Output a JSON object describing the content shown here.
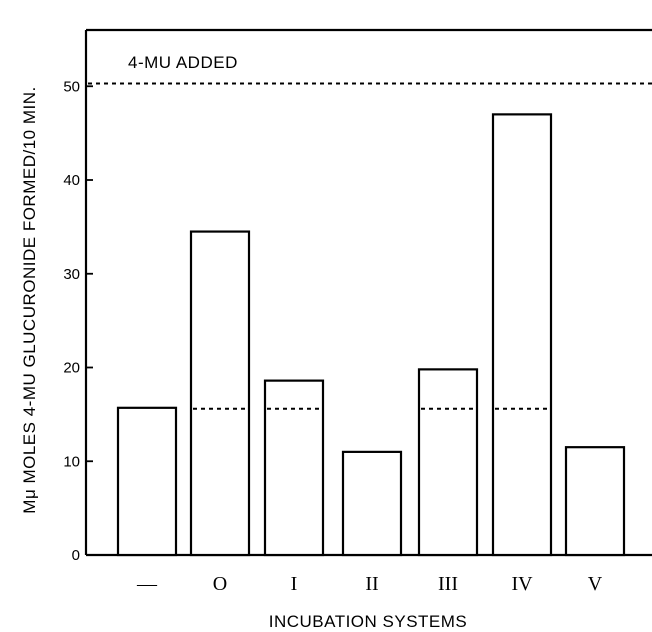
{
  "chart_data": {
    "type": "bar",
    "annotation": "4-MU ADDED",
    "xlabel": "INCUBATION SYSTEMS",
    "ylabel": "Mμ MOLES 4-MU GLUCURONIDE FORMED/10 MIN.",
    "categories": [
      "—",
      "O",
      "I",
      "II",
      "III",
      "IV",
      "V"
    ],
    "values": [
      15.7,
      34.5,
      18.6,
      11.0,
      19.8,
      47.0,
      11.5
    ],
    "reference_lines": [
      {
        "categories": [
          "O",
          "I",
          "III",
          "IV"
        ],
        "value": 15.6,
        "style": "dashed"
      },
      {
        "value": 50.3,
        "style": "dashed",
        "span": "full"
      }
    ],
    "yticks": [
      0,
      10,
      20,
      30,
      40,
      50
    ],
    "ylim": [
      0,
      56
    ],
    "grid": false
  }
}
